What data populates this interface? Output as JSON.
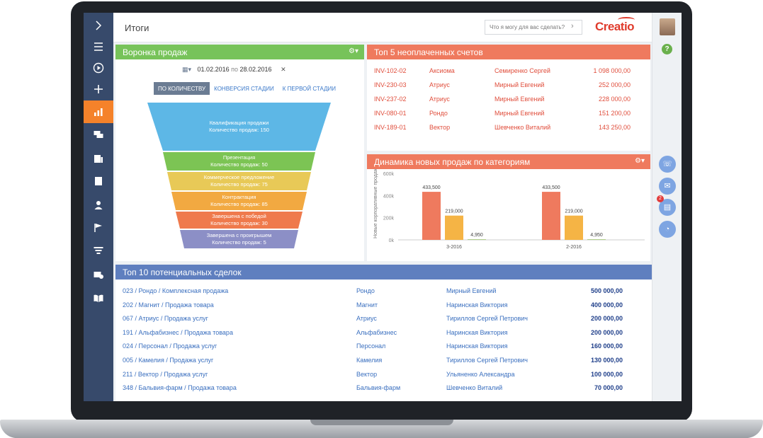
{
  "header": {
    "title": "Итоги",
    "command_placeholder": "Что я могу для вас сделать?",
    "logo": "Creatio"
  },
  "icons": {
    "nav": [
      "chevron-right-icon",
      "menu-icon",
      "play-icon",
      "plus-icon",
      "chart-icon",
      "chat-icon",
      "contacts-icon",
      "building-icon",
      "person-icon",
      "flag-icon",
      "funnel-icon",
      "money-icon",
      "book-icon"
    ],
    "active_nav_index": 4,
    "right": [
      "phone-icon",
      "mail-icon",
      "chat-icon",
      "bell-icon"
    ]
  },
  "colors": {
    "nav_bg": "#374a6b",
    "nav_active": "#f5822a",
    "funnel_header": "#77c35a",
    "invoices_header": "#ef7a5e",
    "dynamics_header": "#ef7a5e",
    "deals_header": "#5f7fbf"
  },
  "rightbar": {
    "badge_count": "2",
    "help_label": "?"
  },
  "funnel": {
    "title": "Воронка продаж",
    "date_from": "01.02.2016",
    "date_sep": "по",
    "date_to": "28.02.2016",
    "close": "✕",
    "tabs": [
      "ПО КОЛИЧЕСТВУ",
      "КОНВЕРСИЯ СТАДИИ",
      "К ПЕРВОЙ СТАДИИ"
    ],
    "active_tab": 0,
    "stages": [
      {
        "name": "Квалификация продажи",
        "value": "Количество продаж: 150",
        "color": "#5db7e6"
      },
      {
        "name": "Презентация",
        "value": "Количество продаж: 50",
        "color": "#7cc454"
      },
      {
        "name": "Коммерческое предложение",
        "value": "Количество продаж: 75",
        "color": "#e8c957"
      },
      {
        "name": "Контрактация",
        "value": "Количество продаж: 85",
        "color": "#f2a941"
      },
      {
        "name": "Завершена с победой",
        "value": "Количество продаж: 30",
        "color": "#ef7a4c"
      },
      {
        "name": "Завершена с проигрышем",
        "value": "Количество продаж: 5",
        "color": "#8c8fc6"
      }
    ]
  },
  "invoices": {
    "title": "Топ 5 неоплаченных счетов",
    "rows": [
      {
        "id": "INV-102-02",
        "account": "Аксиома",
        "owner": "Семиренко Сергей",
        "amount": "1 098 000,00"
      },
      {
        "id": "INV-230-03",
        "account": "Атриус",
        "owner": "Мирный Евгений",
        "amount": "252 000,00"
      },
      {
        "id": "INV-237-02",
        "account": "Атриус",
        "owner": "Мирный Евгений",
        "amount": "228 000,00"
      },
      {
        "id": "INV-080-01",
        "account": "Рондо",
        "owner": "Мирный Евгений",
        "amount": "151 200,00"
      },
      {
        "id": "INV-189-01",
        "account": "Вектор",
        "owner": "Шевченко Виталий",
        "amount": "143 250,00"
      }
    ]
  },
  "dynamics": {
    "title": "Динамика новых продаж по категориям"
  },
  "chart_data": {
    "type": "bar",
    "categories": [
      "3-2016",
      "2-2016"
    ],
    "series": [
      {
        "values": [
          433500,
          433500
        ],
        "color": "#ef7a5e"
      },
      {
        "values": [
          219000,
          219000
        ],
        "color": "#f5b445"
      },
      {
        "values": [
          4950,
          4950
        ],
        "color": "#9bc36b"
      }
    ],
    "data_labels": [
      [
        "433,500",
        "219,000",
        "4,950"
      ],
      [
        "433,500",
        "219,000",
        "4,950"
      ]
    ],
    "ylabel": "Новые корпоративные продажи",
    "yticks": [
      "0k",
      "200k",
      "400k",
      "600k"
    ],
    "ylim": [
      0,
      600000
    ],
    "grid": false
  },
  "deals": {
    "title": "Топ 10 потенциальных сделок",
    "rows": [
      {
        "name": "023 / Рондо / Комплексная продажа",
        "account": "Рондо",
        "owner": "Мирный Евгений",
        "amount": "500 000,00"
      },
      {
        "name": "202 / Магнит / Продажа товара",
        "account": "Магнит",
        "owner": "Наринская Виктория",
        "amount": "400 000,00"
      },
      {
        "name": "067 / Атриус / Продажа услуг",
        "account": "Атриус",
        "owner": "Тириллов Сергей Петрович",
        "amount": "200 000,00"
      },
      {
        "name": "191 / Альфабизнес / Продажа товара",
        "account": "Альфабизнес",
        "owner": "Наринская Виктория",
        "amount": "200 000,00"
      },
      {
        "name": "024 / Персонал / Продажа услуг",
        "account": "Персонал",
        "owner": "Наринская Виктория",
        "amount": "160 000,00"
      },
      {
        "name": "005 / Камелия / Продажа услуг",
        "account": "Камелия",
        "owner": "Тириллов Сергей Петрович",
        "amount": "130 000,00"
      },
      {
        "name": "211 / Вектор / Продажа услуг",
        "account": "Вектор",
        "owner": "Ульяненко Александра",
        "amount": "100 000,00"
      },
      {
        "name": "348 / Бальвия-фарм / Продажа товара",
        "account": "Бальвия-фарм",
        "owner": "Шевченко Виталий",
        "amount": "70 000,00"
      }
    ]
  }
}
